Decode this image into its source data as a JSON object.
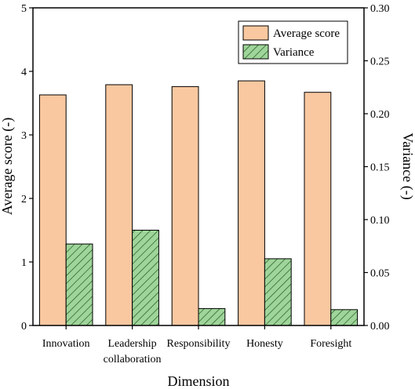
{
  "chart_data": {
    "type": "bar",
    "title": "",
    "xlabel": "Dimension",
    "ylabel": "Average score (-)",
    "y2label": "Variance (-)",
    "ylim": [
      0,
      5
    ],
    "y2lim": [
      0,
      0.3
    ],
    "yticks": [
      "0",
      "1",
      "2",
      "3",
      "4",
      "5"
    ],
    "y2ticks": [
      "0.00",
      "0.05",
      "0.10",
      "0.15",
      "0.20",
      "0.25",
      "0.30"
    ],
    "categories": [
      [
        "Innovation"
      ],
      [
        "Leadership",
        "collaboration"
      ],
      [
        "Responsibility"
      ],
      [
        "Honesty"
      ],
      [
        "Foresight"
      ]
    ],
    "series": [
      {
        "name": "Average score",
        "axis": "left",
        "values": [
          3.63,
          3.79,
          3.76,
          3.85,
          3.67
        ],
        "color": "#f9c8a0",
        "pattern": "solid"
      },
      {
        "name": "Variance",
        "axis": "right",
        "values": [
          0.077,
          0.09,
          0.016,
          0.063,
          0.015
        ],
        "color": "#9fd49a",
        "pattern": "diagonal-hatch"
      }
    ],
    "legend": "top-right",
    "grid": false
  }
}
